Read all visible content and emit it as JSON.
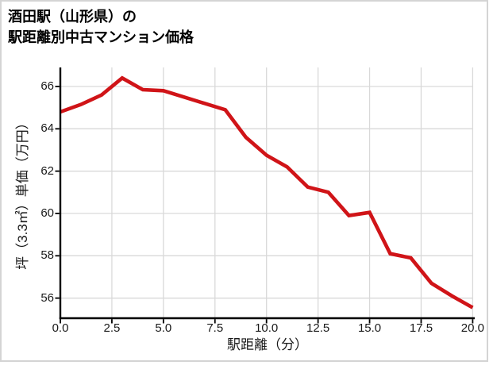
{
  "title": {
    "line1": "酒田駅（山形県）の",
    "line2": "駅距離別中古マンション価格"
  },
  "chart_data": {
    "type": "line",
    "title": "酒田駅（山形県）の駅距離別中古マンション価格",
    "xlabel": "駅距離（分）",
    "ylabel": "坪（3.3㎡）単価（万円）",
    "x": [
      0,
      1,
      2,
      3,
      4,
      5,
      6,
      7,
      8,
      9,
      10,
      11,
      12,
      13,
      14,
      15,
      16,
      17,
      18,
      19,
      20
    ],
    "y": [
      64.8,
      65.15,
      65.6,
      66.4,
      65.85,
      65.8,
      65.5,
      65.2,
      64.9,
      63.6,
      62.75,
      62.2,
      61.25,
      61.0,
      59.9,
      60.05,
      58.1,
      57.9,
      56.7,
      56.1,
      55.55
    ],
    "xlim": [
      0,
      20.1
    ],
    "ylim": [
      55.05,
      66.9
    ],
    "xticks": {
      "values": [
        0,
        2.5,
        5,
        7.5,
        10,
        12.5,
        15,
        17.5,
        20
      ],
      "labels": [
        "0.0",
        "2.5",
        "5.0",
        "7.5",
        "10.0",
        "12.5",
        "15.0",
        "17.5",
        "20.0"
      ]
    },
    "yticks": {
      "values": [
        56,
        58,
        60,
        62,
        64,
        66
      ],
      "labels": [
        "56",
        "58",
        "60",
        "62",
        "64",
        "66"
      ]
    },
    "grid": true,
    "legend": "none"
  },
  "colors": {
    "line": "#d01418",
    "grid": "#d9d9d9",
    "spine": "#000000",
    "frame_border": "#d4d4d4",
    "text": "#1a1a1a",
    "title_text": "#000000"
  }
}
